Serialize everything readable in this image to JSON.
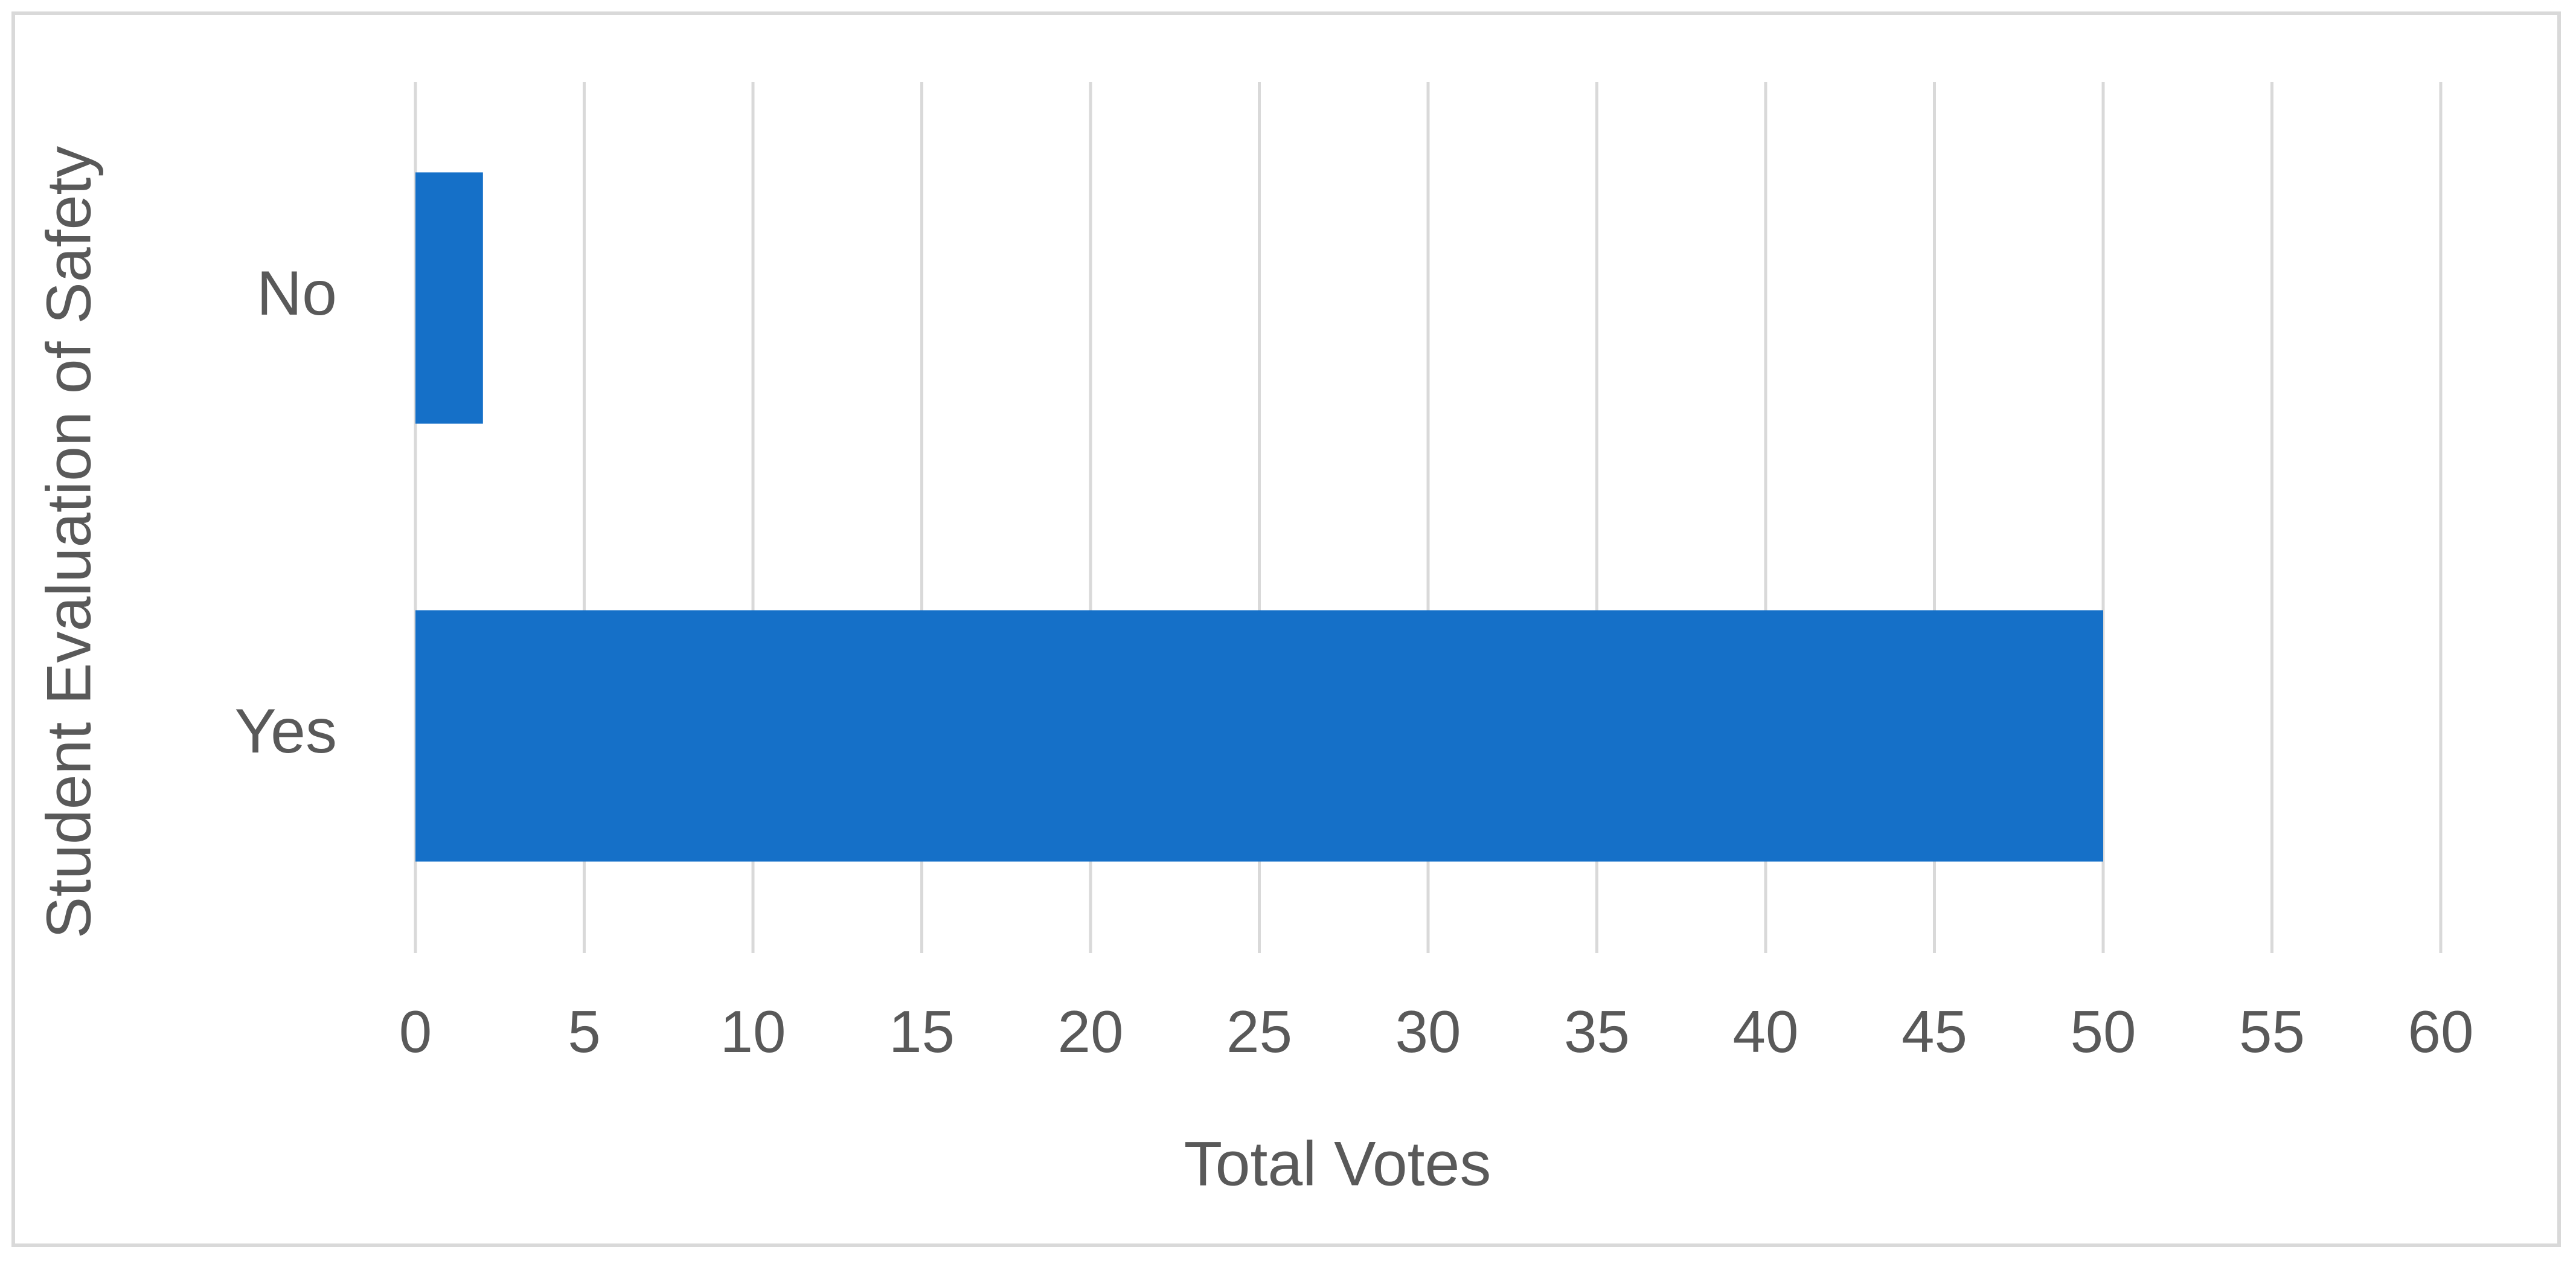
{
  "chart_data": {
    "type": "hbar",
    "categories": [
      "No",
      "Yes"
    ],
    "values": [
      2,
      50
    ],
    "color": "#1570c8",
    "xlabel": "Total Votes",
    "ylabel": "Student Evaluation of Safety",
    "xlim": [
      0,
      60
    ],
    "xticks": [
      0,
      5,
      10,
      15,
      20,
      25,
      30,
      35,
      40,
      45,
      50,
      55,
      60
    ],
    "grid": true
  }
}
